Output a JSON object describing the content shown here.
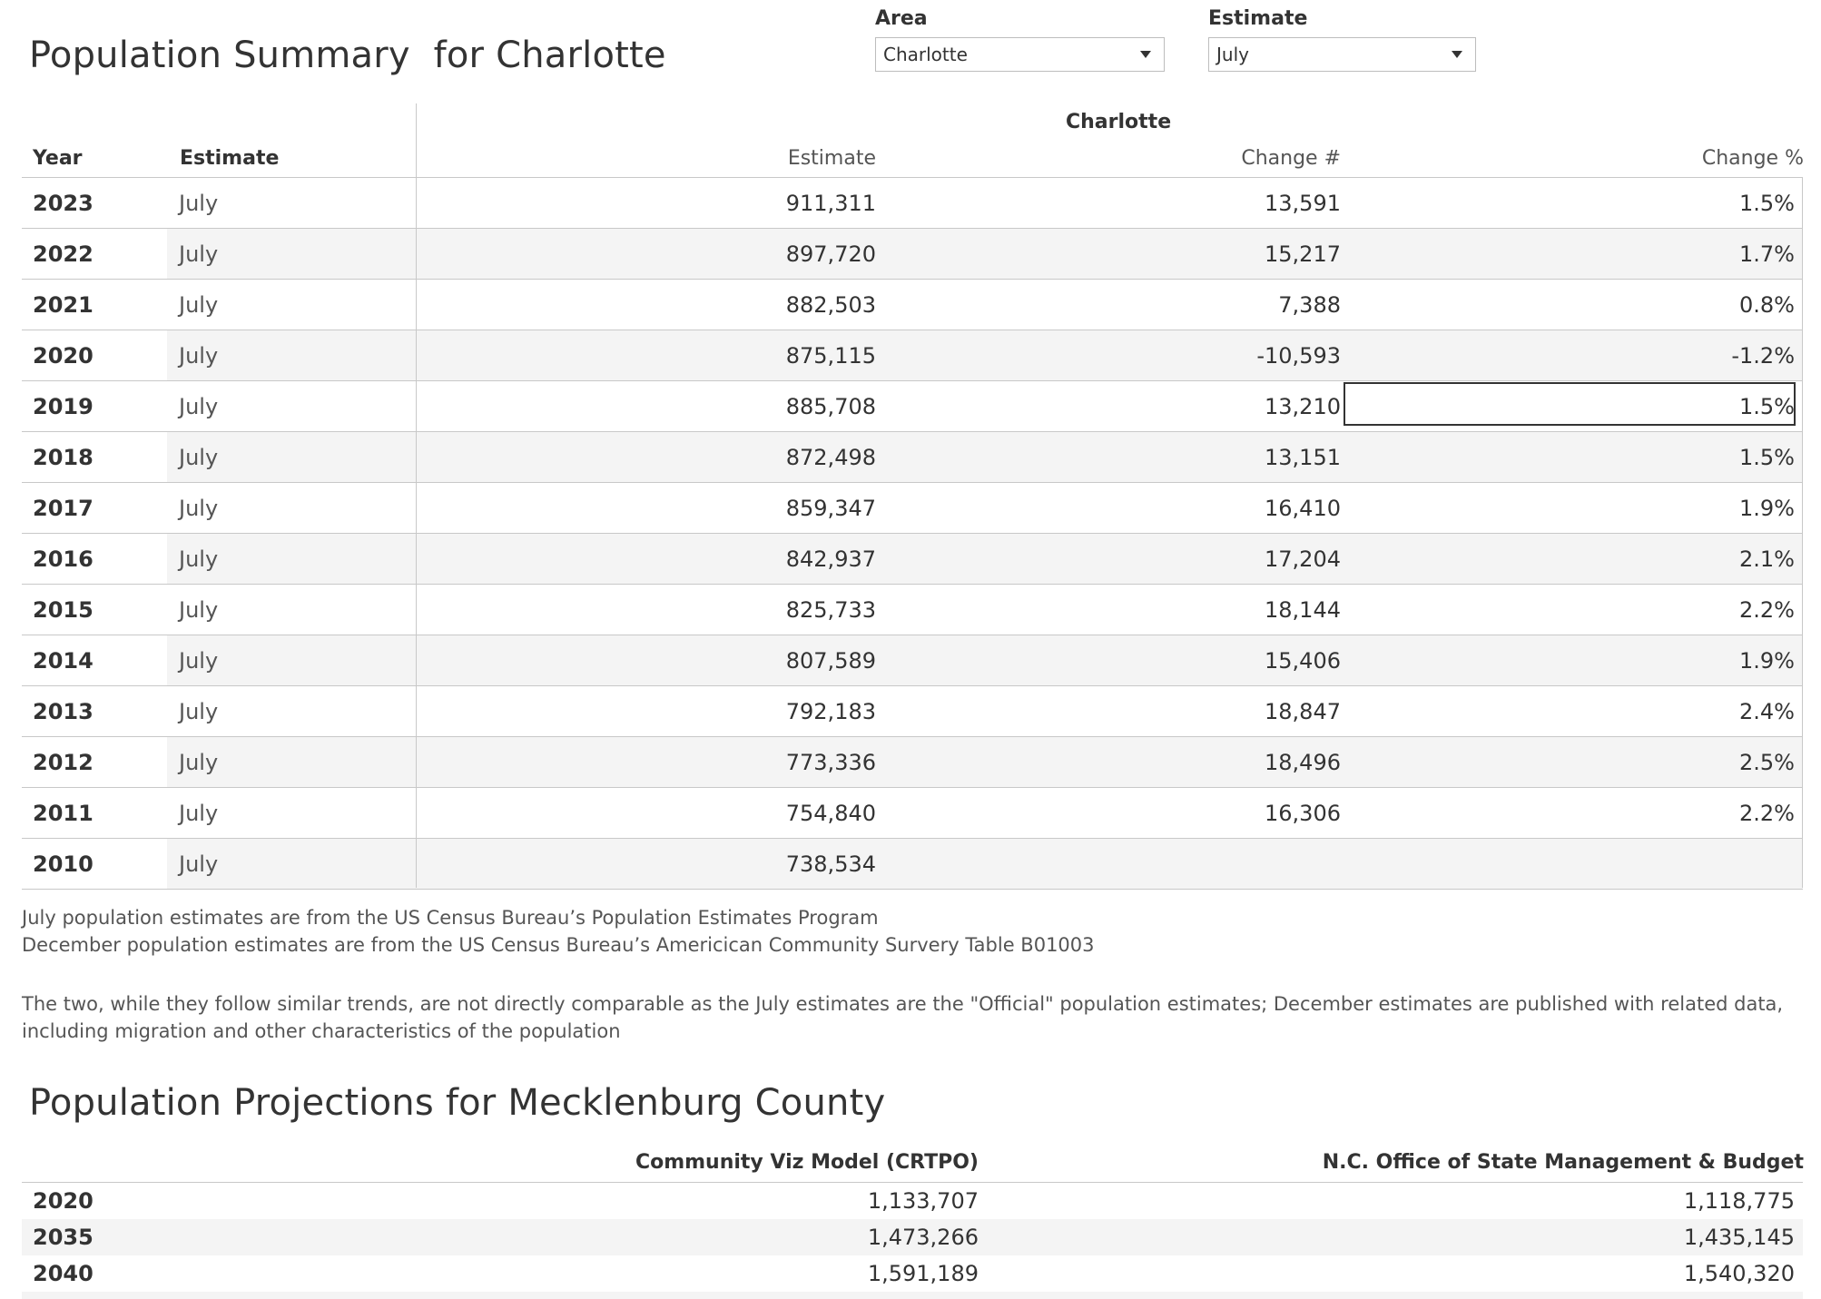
{
  "summary": {
    "title": "Population Summary  for Charlotte",
    "filters": {
      "area_label": "Area",
      "area_value": "Charlotte",
      "estimate_label": "Estimate",
      "estimate_value": "July"
    },
    "table": {
      "group_header": "Charlotte",
      "columns": [
        "Year",
        "Estimate",
        "Estimate",
        "Change #",
        "Change %"
      ],
      "rows": [
        {
          "year": "2023",
          "estimate": "July",
          "value": "911,311",
          "change_num": "13,591",
          "change_pct": "1.5%"
        },
        {
          "year": "2022",
          "estimate": "July",
          "value": "897,720",
          "change_num": "15,217",
          "change_pct": "1.7%"
        },
        {
          "year": "2021",
          "estimate": "July",
          "value": "882,503",
          "change_num": "7,388",
          "change_pct": "0.8%"
        },
        {
          "year": "2020",
          "estimate": "July",
          "value": "875,115",
          "change_num": "-10,593",
          "change_pct": "-1.2%"
        },
        {
          "year": "2019",
          "estimate": "July",
          "value": "885,708",
          "change_num": "13,210",
          "change_pct": "1.5%"
        },
        {
          "year": "2018",
          "estimate": "July",
          "value": "872,498",
          "change_num": "13,151",
          "change_pct": "1.5%"
        },
        {
          "year": "2017",
          "estimate": "July",
          "value": "859,347",
          "change_num": "16,410",
          "change_pct": "1.9%"
        },
        {
          "year": "2016",
          "estimate": "July",
          "value": "842,937",
          "change_num": "17,204",
          "change_pct": "2.1%"
        },
        {
          "year": "2015",
          "estimate": "July",
          "value": "825,733",
          "change_num": "18,144",
          "change_pct": "2.2%"
        },
        {
          "year": "2014",
          "estimate": "July",
          "value": "807,589",
          "change_num": "15,406",
          "change_pct": "1.9%"
        },
        {
          "year": "2013",
          "estimate": "July",
          "value": "792,183",
          "change_num": "18,847",
          "change_pct": "2.4%"
        },
        {
          "year": "2012",
          "estimate": "July",
          "value": "773,336",
          "change_num": "18,496",
          "change_pct": "2.5%"
        },
        {
          "year": "2011",
          "estimate": "July",
          "value": "754,840",
          "change_num": "16,306",
          "change_pct": "2.2%"
        },
        {
          "year": "2010",
          "estimate": "July",
          "value": "738,534",
          "change_num": "",
          "change_pct": ""
        }
      ]
    }
  },
  "notes": {
    "line1": "July population estimates are from the US Census Bureau’s  Population Estimates Program",
    "line2": "December population estimates are from the US Census Bureau’s Americican Community Survery Table B01003",
    "line3": "The two, while they follow similar trends, are not directly comparable as the July estimates are the \"Official\" population estimates; December estimates are published with related data,",
    "line4": "including migration and other characteristics of the population"
  },
  "projections": {
    "title": "Population Projections for Mecklenburg County",
    "columns": [
      "Community Viz Model (CRTPO)",
      "N.C. Office of State Management & Budget"
    ],
    "rows": [
      {
        "year": "2020",
        "crtpo": "1,133,707",
        "osbm": "1,118,775"
      },
      {
        "year": "2035",
        "crtpo": "1,473,266",
        "osbm": "1,435,145"
      },
      {
        "year": "2040",
        "crtpo": "1,591,189",
        "osbm": "1,540,320"
      }
    ]
  }
}
